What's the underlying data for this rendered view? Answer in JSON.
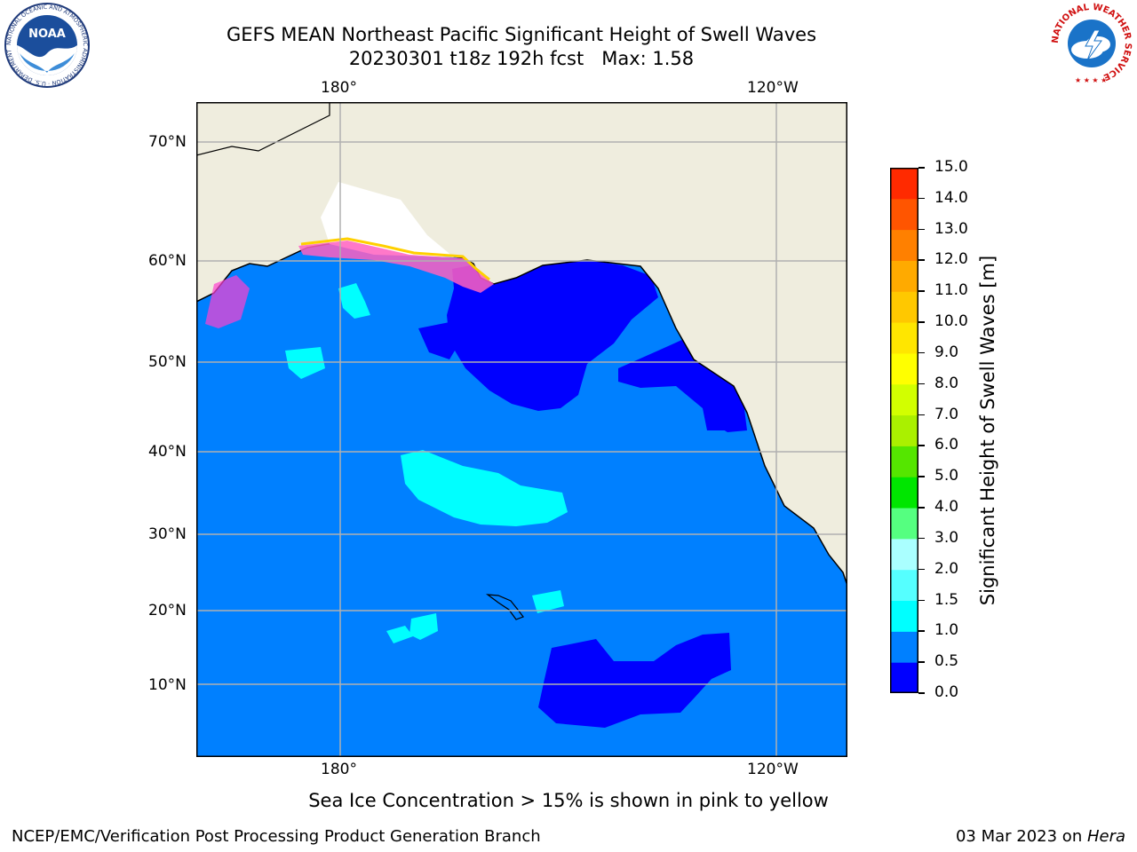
{
  "header": {
    "title_line1": "GEFS MEAN Northeast Pacific Significant Height of Swell Waves",
    "title_line2": "20230301 t18z 192h fcst   Max: 1.58"
  },
  "logos": {
    "noaa_text": "NOAA",
    "noaa_ring": "NATIONAL OCEANIC AND ATMOSPHERIC ADMINISTRATION · U.S. DEPARTMENT OF COMMERCE",
    "nws_ring": "NATIONAL WEATHER SERVICE"
  },
  "map": {
    "lon_labels": [
      "180°",
      "120°W"
    ],
    "lat_labels": [
      "70°N",
      "60°N",
      "50°N",
      "40°N",
      "30°N",
      "20°N",
      "10°N"
    ],
    "colors": {
      "land": "#efedde",
      "ocean_0_5_1_0": "#0080ff",
      "ocean_0_0_0_5": "#0000ff",
      "ocean_1_0_1_5": "#00ffff",
      "grid": "#b0b0b0"
    }
  },
  "colorbar": {
    "label": "Significant Height of Swell Waves [m]",
    "ticks": [
      "0.0",
      "0.5",
      "1.0",
      "1.5",
      "2.0",
      "3.0",
      "4.0",
      "5.0",
      "6.0",
      "7.0",
      "8.0",
      "9.0",
      "10.0",
      "11.0",
      "12.0",
      "13.0",
      "14.0",
      "15.0"
    ],
    "colors": [
      "#0000ff",
      "#0080ff",
      "#00ffff",
      "#55ffff",
      "#aaffff",
      "#55ff80",
      "#00e600",
      "#55e600",
      "#aaf000",
      "#d2ff00",
      "#ffff00",
      "#ffe600",
      "#ffc800",
      "#ffaa00",
      "#ff8000",
      "#ff5500",
      "#ff2a00"
    ]
  },
  "note": "Sea Ice Concentration > 15% is shown in pink to yellow",
  "footer": {
    "left": "NCEP/EMC/Verification Post Processing Product Generation Branch",
    "right_prefix": "03 Mar 2023 on ",
    "right_host": "Hera"
  }
}
